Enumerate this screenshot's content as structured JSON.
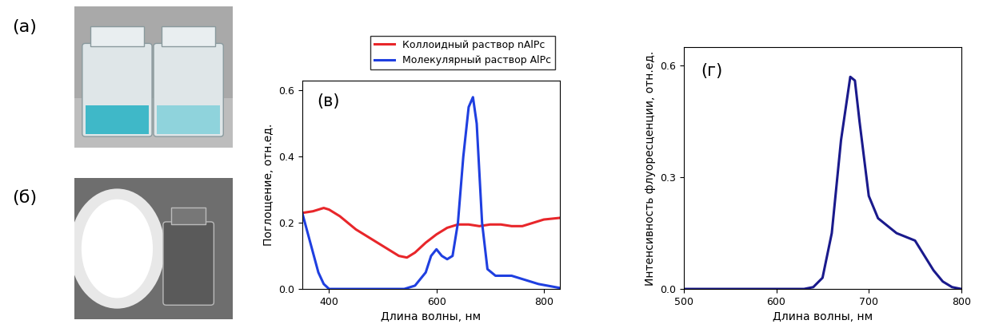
{
  "photos": [
    {
      "label": "(a)"
    },
    {
      "label": "(б)"
    }
  ],
  "chart_data": [
    {
      "type": "line",
      "annotations": [
        "(в)"
      ],
      "x_label": "Длина волны, нм",
      "y_label": "Поглощение, отн.ед.",
      "xlim": [
        350,
        830
      ],
      "xticks": [
        400,
        600,
        800
      ],
      "ylim": [
        0.0,
        0.63
      ],
      "yticks": [
        0.0,
        0.2,
        0.4,
        0.6
      ],
      "legend": "upper right",
      "series": [
        {
          "name": "Коллоидный раствор nAlPc",
          "color": "#e8262a",
          "x": [
            350,
            370,
            390,
            400,
            420,
            450,
            480,
            510,
            530,
            545,
            560,
            580,
            600,
            620,
            640,
            660,
            680,
            700,
            720,
            740,
            760,
            780,
            800,
            830
          ],
          "values": [
            0.23,
            0.235,
            0.245,
            0.24,
            0.22,
            0.18,
            0.15,
            0.12,
            0.1,
            0.095,
            0.11,
            0.14,
            0.165,
            0.185,
            0.195,
            0.195,
            0.19,
            0.195,
            0.195,
            0.19,
            0.19,
            0.2,
            0.21,
            0.215
          ]
        },
        {
          "name": "Молекулярный раствор AlPc",
          "color": "#1f3fe0",
          "x": [
            350,
            360,
            370,
            380,
            390,
            400,
            450,
            540,
            560,
            580,
            590,
            600,
            610,
            620,
            630,
            640,
            650,
            660,
            668,
            675,
            685,
            695,
            710,
            740,
            760,
            790,
            830
          ],
          "values": [
            0.23,
            0.17,
            0.11,
            0.05,
            0.015,
            0.0,
            0.0,
            0.0,
            0.01,
            0.05,
            0.1,
            0.12,
            0.1,
            0.09,
            0.1,
            0.2,
            0.4,
            0.55,
            0.58,
            0.5,
            0.2,
            0.06,
            0.04,
            0.04,
            0.03,
            0.015,
            0.003
          ]
        }
      ]
    },
    {
      "type": "line",
      "annotations": [
        "(г)"
      ],
      "x_label": "Длина волны, нм",
      "y_label": "Интенсивность флуоресценции, отн.ед.",
      "xlim": [
        500,
        800
      ],
      "xticks": [
        500,
        600,
        700,
        800
      ],
      "ylim": [
        0.0,
        0.65
      ],
      "yticks": [
        0.0,
        0.3,
        0.6
      ],
      "series": [
        {
          "color": "#1a1a8c",
          "x": [
            500,
            600,
            630,
            640,
            650,
            660,
            670,
            680,
            685,
            690,
            700,
            710,
            720,
            730,
            740,
            750,
            760,
            770,
            780,
            790,
            800
          ],
          "values": [
            0.0,
            0.0,
            0.0,
            0.005,
            0.03,
            0.15,
            0.4,
            0.57,
            0.56,
            0.45,
            0.25,
            0.19,
            0.17,
            0.15,
            0.14,
            0.13,
            0.09,
            0.05,
            0.02,
            0.005,
            0.0
          ]
        }
      ]
    }
  ]
}
